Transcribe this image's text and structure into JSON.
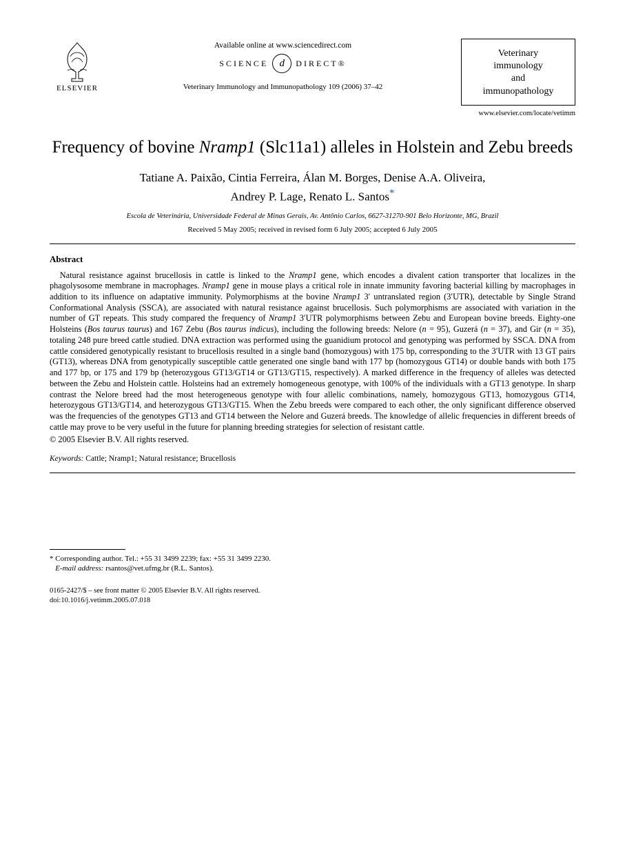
{
  "header": {
    "publisher_name": "ELSEVIER",
    "available_online": "Available online at www.sciencedirect.com",
    "sd_left": "SCIENCE",
    "sd_glyph": "d",
    "sd_right": "DIRECT®",
    "journal_ref": "Veterinary Immunology and Immunopathology 109 (2006) 37–42",
    "journal_box_line1": "Veterinary",
    "journal_box_line2": "immunology",
    "journal_box_line3": "and",
    "journal_box_line4": "immunopathology",
    "journal_url": "www.elsevier.com/locate/vetimm"
  },
  "title": {
    "pre": "Frequency of bovine ",
    "ital": "Nramp1",
    "post": " (Slc11a1) alleles in Holstein and Zebu breeds"
  },
  "authors_line1": "Tatiane A. Paixão, Cintia Ferreira, Álan M. Borges, Denise A.A. Oliveira,",
  "authors_line2": "Andrey P. Lage, Renato L. Santos",
  "corr_marker": "*",
  "affiliation": "Escola de Veterinária, Universidade Federal de Minas Gerais, Av. Antônio Carlos, 6627-31270-901 Belo Horizonte, MG, Brazil",
  "dates": "Received 5 May 2005; received in revised form 6 July 2005; accepted 6 July 2005",
  "abstract_heading": "Abstract",
  "abstract_parts": [
    {
      "t": "plain",
      "v": "Natural resistance against brucellosis in cattle is linked to the "
    },
    {
      "t": "ital",
      "v": "Nramp1"
    },
    {
      "t": "plain",
      "v": " gene, which encodes a divalent cation transporter that localizes in the phagolysosome membrane in macrophages. "
    },
    {
      "t": "ital",
      "v": "Nramp1"
    },
    {
      "t": "plain",
      "v": " gene in mouse plays a critical role in innate immunity favoring bacterial killing by macrophages in addition to its influence on adaptative immunity. Polymorphisms at the bovine "
    },
    {
      "t": "ital",
      "v": "Nramp1"
    },
    {
      "t": "plain",
      "v": " 3′ untranslated region (3′UTR), detectable by Single Strand Conformational Analysis (SSCA), are associated with natural resistance against brucellosis. Such polymorphisms are associated with variation in the number of GT repeats. This study compared the frequency of "
    },
    {
      "t": "ital",
      "v": "Nramp1"
    },
    {
      "t": "plain",
      "v": " 3′UTR polymorphisms between Zebu and European bovine breeds. Eighty-one Holsteins ("
    },
    {
      "t": "ital",
      "v": "Bos taurus taurus"
    },
    {
      "t": "plain",
      "v": ") and 167 Zebu ("
    },
    {
      "t": "ital",
      "v": "Bos taurus indicus"
    },
    {
      "t": "plain",
      "v": "), including the following breeds: Nelore ("
    },
    {
      "t": "ital",
      "v": "n"
    },
    {
      "t": "plain",
      "v": " = 95), Guzerá ("
    },
    {
      "t": "ital",
      "v": "n"
    },
    {
      "t": "plain",
      "v": " = 37), and Gir ("
    },
    {
      "t": "ital",
      "v": "n"
    },
    {
      "t": "plain",
      "v": " = 35), totaling 248 pure breed cattle studied. DNA extraction was performed using the guanidium protocol and genotyping was performed by SSCA. DNA from cattle considered genotypically resistant to brucellosis resulted in a single band (homozygous) with 175 bp, corresponding to the 3′UTR with 13 GT pairs (GT13), whereas DNA from genotypically susceptible cattle generated one single band with 177 bp (homozygous GT14) or double bands with both 175 and 177 bp, or 175 and 179 bp (heterozygous GT13/GT14 or GT13/GT15, respectively). A marked difference in the frequency of alleles was detected between the Zebu and Holstein cattle. Holsteins had an extremely homogeneous genotype, with 100% of the individuals with a GT13 genotype. In sharp contrast the Nelore breed had the most heterogeneous genotype with four allelic combinations, namely, homozygous GT13, homozygous GT14, heterozygous GT13/GT14, and heterozygous GT13/GT15. When the Zebu breeds were compared to each other, the only significant difference observed was the frequencies of the genotypes GT13 and GT14 between the Nelore and Guzerá breeds. The knowledge of allelic frequencies in different breeds of cattle may prove to be very useful in the future for planning breeding strategies for selection of resistant cattle."
    }
  ],
  "copyright": "© 2005 Elsevier B.V. All rights reserved.",
  "keywords_label": "Keywords:",
  "keywords_value": " Cattle; Nramp1; Natural resistance; Brucellosis",
  "corresponding": {
    "star": "*",
    "text": " Corresponding author. Tel.: +55 31 3499 2239; fax: +55 31 3499 2230.",
    "email_label": "E-mail address:",
    "email_value": " rsantos@vet.ufmg.br (R.L. Santos)."
  },
  "footer": {
    "issn_line": "0165-2427/$ – see front matter © 2005 Elsevier B.V. All rights reserved.",
    "doi_line": "doi:10.1016/j.vetimm.2005.07.018"
  },
  "colors": {
    "text": "#000000",
    "background": "#ffffff",
    "link_star": "#2060c8"
  }
}
